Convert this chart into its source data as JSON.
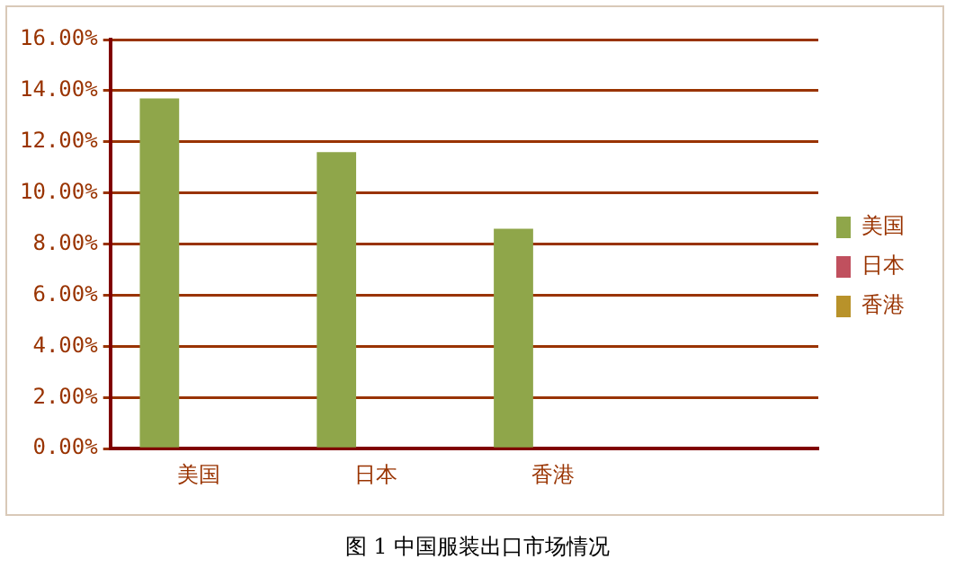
{
  "chart_data": {
    "type": "bar",
    "categories": [
      "美国",
      "日本",
      "香港",
      null
    ],
    "series": [
      {
        "name": "美国",
        "color": "#8fa64a",
        "values": [
          13.7,
          11.6,
          8.6,
          null
        ]
      },
      {
        "name": "日本",
        "color": "#c0505e",
        "values": [
          null,
          null,
          null,
          null
        ]
      },
      {
        "name": "香港",
        "color": "#b8922a",
        "values": [
          null,
          null,
          null,
          null
        ]
      }
    ],
    "ylim": [
      0,
      16
    ],
    "yticks": [
      {
        "value": 0,
        "label": "0.00%"
      },
      {
        "value": 2,
        "label": "2.00%"
      },
      {
        "value": 4,
        "label": "4.00%"
      },
      {
        "value": 6,
        "label": "6.00%"
      },
      {
        "value": 8,
        "label": "8.00%"
      },
      {
        "value": 10,
        "label": "10.00%"
      },
      {
        "value": 12,
        "label": "12.00%"
      },
      {
        "value": 14,
        "label": "14.00%"
      },
      {
        "value": 16,
        "label": "16.00%"
      }
    ],
    "grid": "y",
    "legend": "right",
    "annotations": [
      "图 1 中国服装出口市场情况"
    ]
  }
}
